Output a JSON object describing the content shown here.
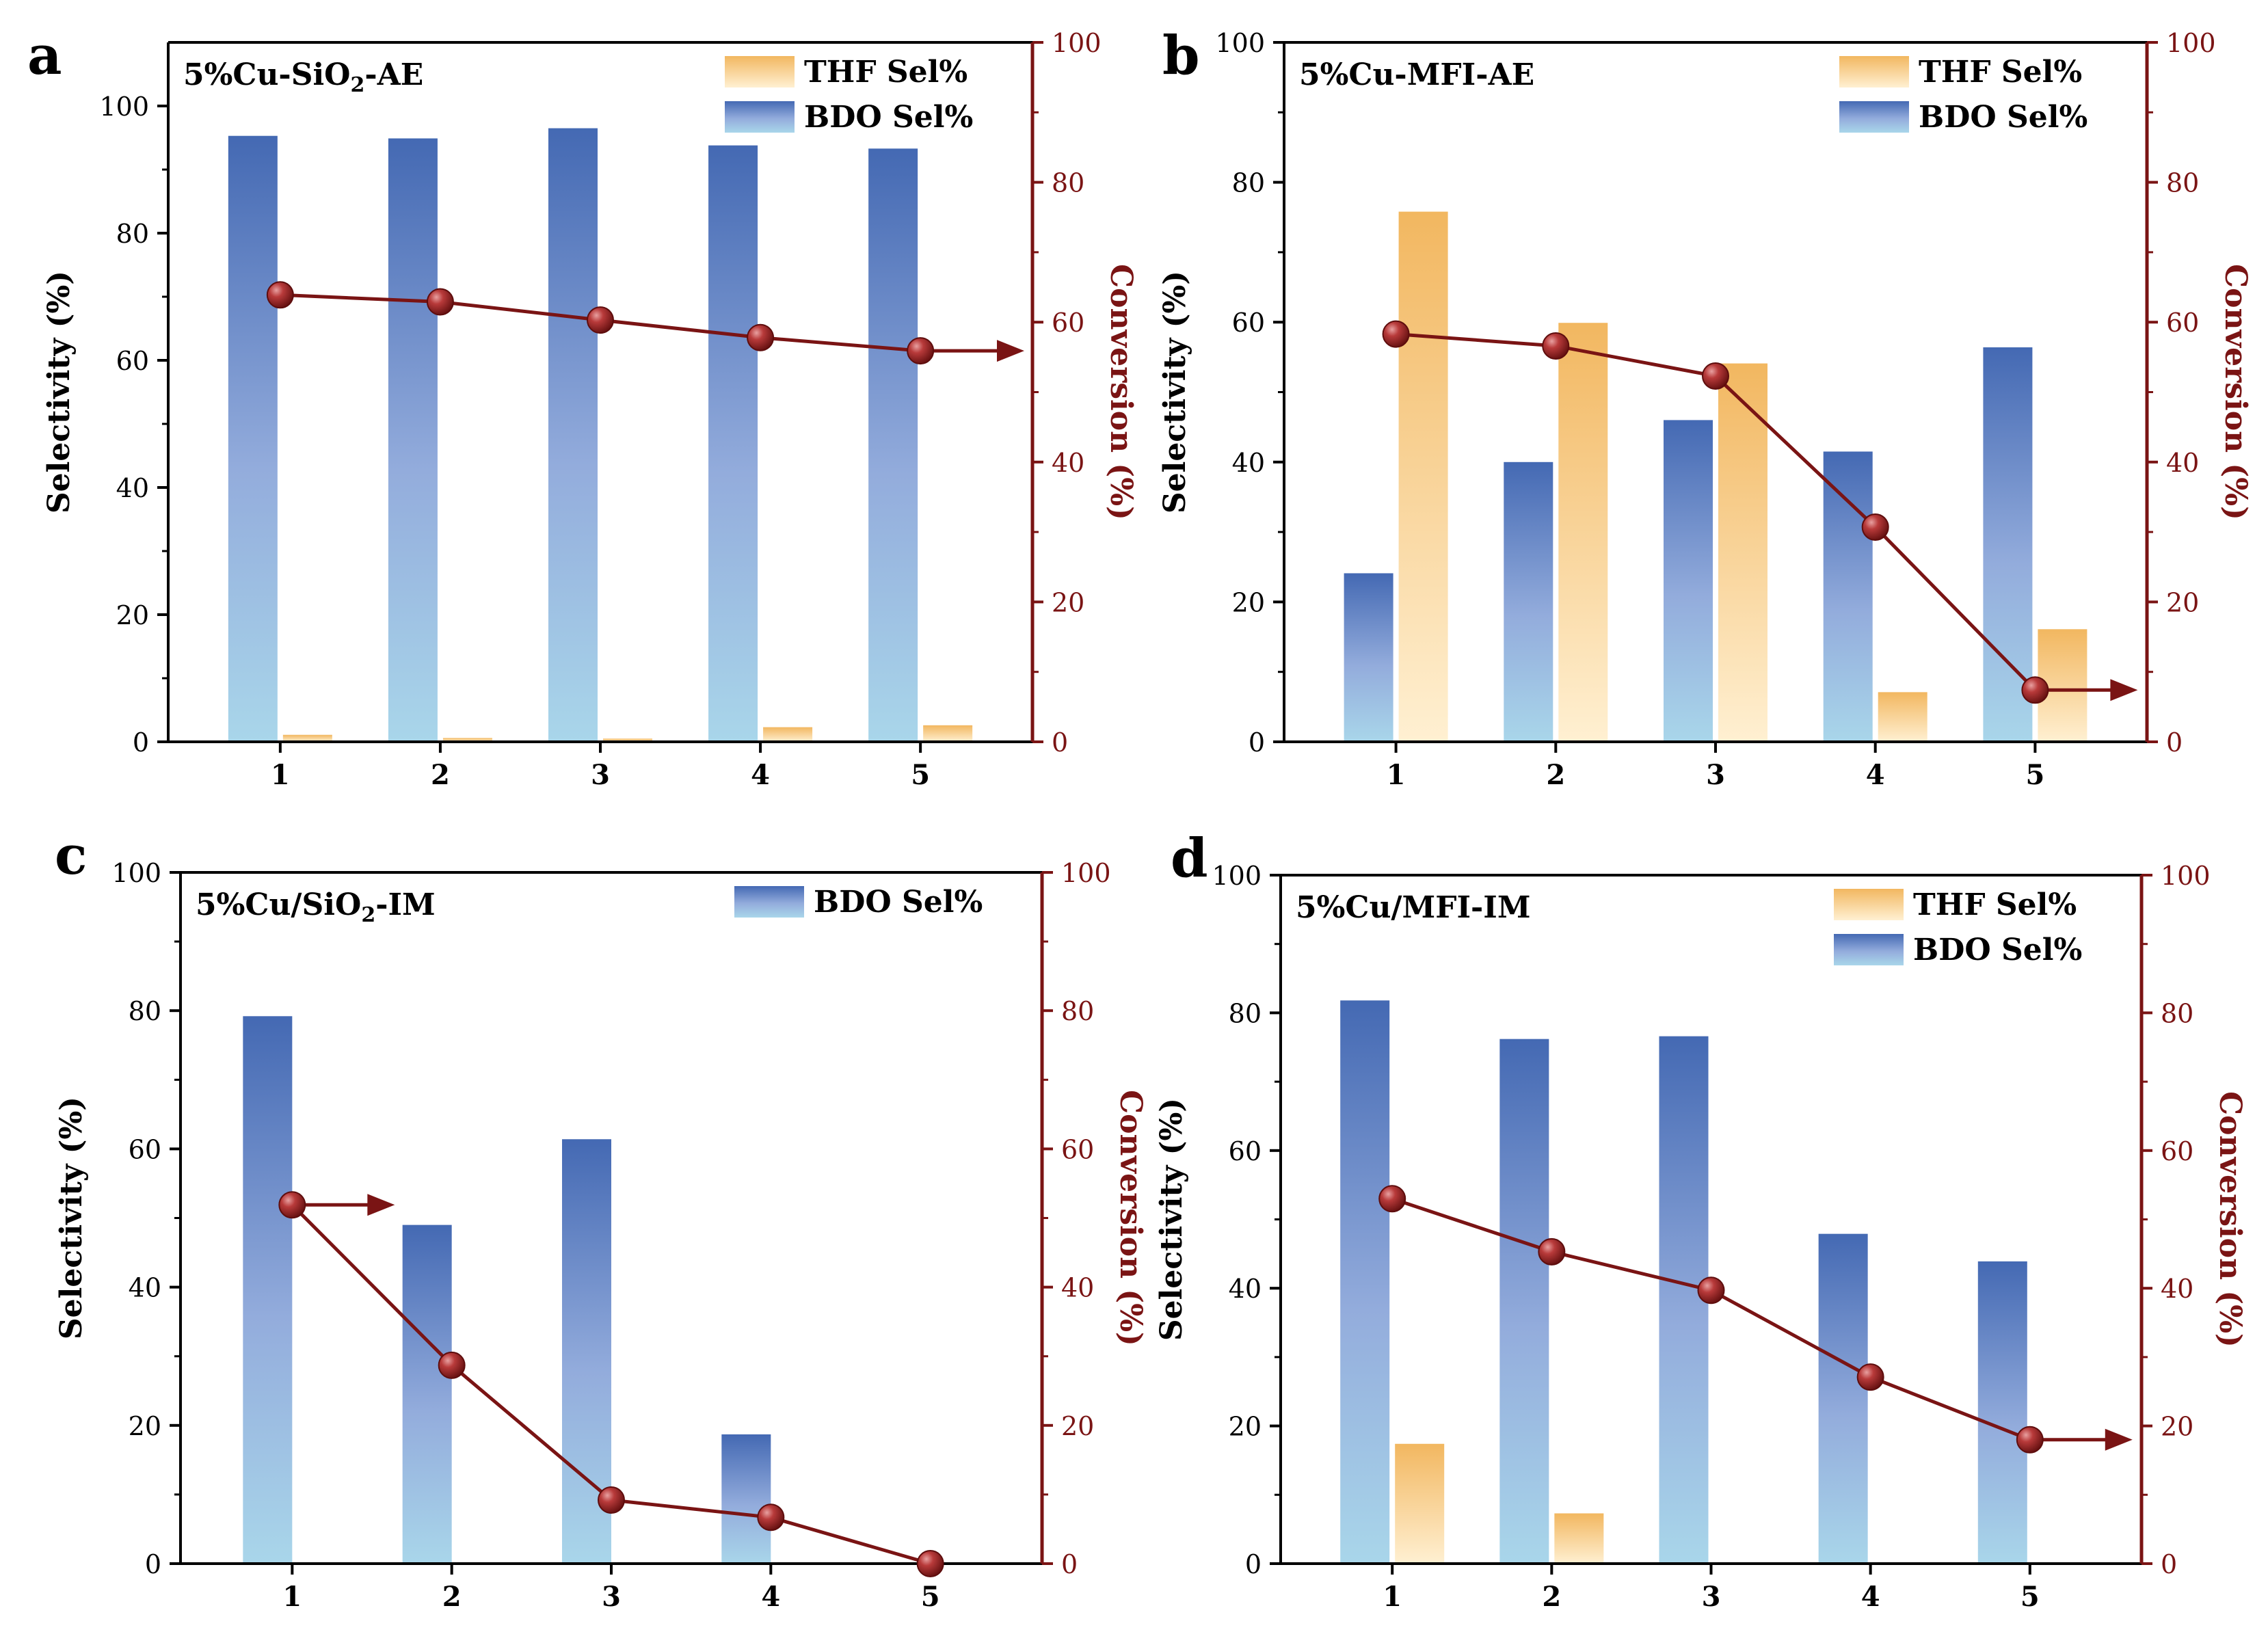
{
  "figure": {
    "colors": {
      "bdo_top": "#4469b3",
      "bdo_mid": "#93acdc",
      "bdo_bottom": "#a9d6ea",
      "thf_top": "#f2b760",
      "thf_bottom": "#fff0d2",
      "conversion": "#7a1414",
      "marker_light": "#c25050",
      "marker_dark": "#5e0d0d",
      "axis": "#000000"
    }
  },
  "chart_data": [
    {
      "panel": "a",
      "type": "bar",
      "title": "5%Cu-SiO2-AE",
      "title_parts": [
        "5%Cu-SiO",
        "2",
        "-AE"
      ],
      "categories": [
        "1",
        "2",
        "3",
        "4",
        "5"
      ],
      "xlabel": "",
      "ylabel": "Selectivity (%)",
      "y2label": "Conversion (%)",
      "ylim": [
        0,
        110
      ],
      "y2lim": [
        0,
        100
      ],
      "yticks": [
        0,
        20,
        40,
        60,
        80,
        100
      ],
      "y2ticks": [
        0,
        20,
        40,
        60,
        80,
        100
      ],
      "legend": [
        "THF Sel%",
        "BDO Sel%"
      ],
      "legend_position": "top-right",
      "series": [
        {
          "name": "BDO Sel%",
          "axis": "left",
          "kind": "bar",
          "values": [
            95.3,
            94.9,
            96.5,
            93.8,
            93.3
          ]
        },
        {
          "name": "THF Sel%",
          "axis": "left",
          "kind": "bar",
          "values": [
            1.1,
            0.6,
            0.5,
            2.3,
            2.6
          ]
        },
        {
          "name": "Conversion",
          "axis": "right",
          "kind": "line",
          "values": [
            63.9,
            62.9,
            60.3,
            57.8,
            55.9
          ]
        }
      ],
      "arrow": {
        "from_point": 5,
        "direction": "right"
      }
    },
    {
      "panel": "b",
      "type": "bar",
      "title": "5%Cu-MFI-AE",
      "title_parts": [
        "5%Cu-MFI-AE"
      ],
      "categories": [
        "1",
        "2",
        "3",
        "4",
        "5"
      ],
      "xlabel": "",
      "ylabel": "Selectivity (%)",
      "y2label": "Conversion (%)",
      "ylim": [
        0,
        100
      ],
      "y2lim": [
        0,
        100
      ],
      "yticks": [
        0,
        20,
        40,
        60,
        80,
        100
      ],
      "y2ticks": [
        0,
        20,
        40,
        60,
        80,
        100
      ],
      "legend": [
        "THF Sel%",
        "BDO Sel%"
      ],
      "legend_position": "top-right",
      "series": [
        {
          "name": "BDO Sel%",
          "axis": "left",
          "kind": "bar",
          "values": [
            24.1,
            40.0,
            46.0,
            41.5,
            56.4
          ]
        },
        {
          "name": "THF Sel%",
          "axis": "left",
          "kind": "bar",
          "values": [
            75.8,
            59.9,
            54.1,
            7.1,
            16.1
          ]
        },
        {
          "name": "Conversion",
          "axis": "right",
          "kind": "line",
          "values": [
            58.3,
            56.6,
            52.3,
            30.7,
            7.4
          ]
        }
      ],
      "arrow": {
        "from_point": 5,
        "direction": "right"
      }
    },
    {
      "panel": "c",
      "type": "bar",
      "title": "5%Cu/SiO2-IM",
      "title_parts": [
        "5%Cu/SiO",
        "2",
        "-IM"
      ],
      "categories": [
        "1",
        "2",
        "3",
        "4",
        "5"
      ],
      "xlabel": "",
      "ylabel": "Selectivity (%)",
      "y2label": "Conversion (%)",
      "ylim": [
        0,
        100
      ],
      "y2lim": [
        0,
        100
      ],
      "yticks": [
        0,
        20,
        40,
        60,
        80,
        100
      ],
      "y2ticks": [
        0,
        20,
        40,
        60,
        80,
        100
      ],
      "legend": [
        "BDO Sel%"
      ],
      "legend_position": "top-right",
      "series": [
        {
          "name": "BDO Sel%",
          "axis": "left",
          "kind": "bar",
          "values": [
            79.2,
            49.0,
            61.4,
            18.7,
            0
          ]
        },
        {
          "name": "Conversion",
          "axis": "right",
          "kind": "line",
          "values": [
            51.9,
            28.7,
            9.2,
            6.7,
            0
          ]
        }
      ],
      "arrow": {
        "from_point": 1,
        "direction": "right"
      }
    },
    {
      "panel": "d",
      "type": "bar",
      "title": "5%Cu/MFI-IM",
      "title_parts": [
        "5%Cu/MFI-IM"
      ],
      "categories": [
        "1",
        "2",
        "3",
        "4",
        "5"
      ],
      "xlabel": "",
      "ylabel": "Selectivity (%)",
      "y2label": "Conversion (%)",
      "ylim": [
        0,
        100
      ],
      "y2lim": [
        0,
        100
      ],
      "yticks": [
        0,
        20,
        40,
        60,
        80,
        100
      ],
      "y2ticks": [
        0,
        20,
        40,
        60,
        80,
        100
      ],
      "legend": [
        "THF Sel%",
        "BDO Sel%"
      ],
      "legend_position": "top-right",
      "series": [
        {
          "name": "BDO Sel%",
          "axis": "left",
          "kind": "bar",
          "values": [
            81.8,
            76.2,
            76.6,
            47.9,
            43.9
          ]
        },
        {
          "name": "THF Sel%",
          "axis": "left",
          "kind": "bar",
          "values": [
            17.4,
            7.3,
            0,
            0,
            0
          ]
        },
        {
          "name": "Conversion",
          "axis": "right",
          "kind": "line",
          "values": [
            53.0,
            45.3,
            39.7,
            27.1,
            18.0
          ]
        }
      ],
      "arrow": {
        "from_point": 5,
        "direction": "right"
      }
    }
  ]
}
